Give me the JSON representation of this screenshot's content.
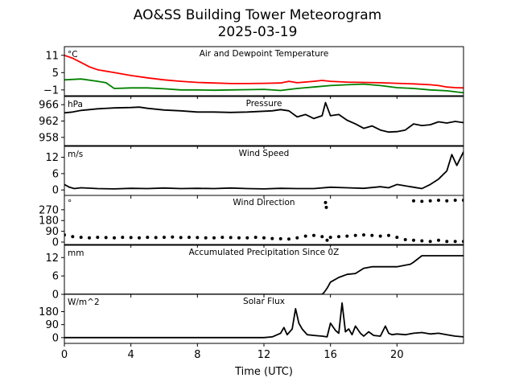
{
  "chart_data": {
    "type": "line",
    "title": "AO&SS Building Tower Meteorogram",
    "subtitle": "2025-03-19",
    "xlabel": "Time (UTC)",
    "xlim": [
      0,
      24
    ],
    "xticks": [
      0,
      4,
      8,
      12,
      16,
      20
    ],
    "xtick_labels": [
      "0",
      "4",
      "8",
      "12",
      "16",
      "20"
    ],
    "panels": [
      {
        "title": "Air and Dewpoint Temperature",
        "unit": "°C",
        "ylim": [
          -3,
          14
        ],
        "yticks": [
          -1,
          5,
          11
        ],
        "ytick_labels": [
          "−1",
          "5",
          "11"
        ],
        "series": [
          {
            "type": "line",
            "color": "#ff0000",
            "x": [
              0,
              0.5,
              1,
              1.5,
              2,
              3,
              4,
              5,
              6,
              7,
              8,
              9,
              10,
              11,
              12,
              13,
              13.5,
              14,
              15,
              15.5,
              16,
              17,
              18,
              19,
              20,
              21,
              22,
              22.5,
              23,
              23.5,
              24
            ],
            "values": [
              11,
              10,
              8.5,
              7,
              6,
              5,
              4,
              3.2,
              2.5,
              2,
              1.6,
              1.4,
              1.2,
              1.2,
              1.3,
              1.4,
              2,
              1.5,
              2,
              2.3,
              2,
              1.7,
              1.6,
              1.5,
              1.3,
              1.1,
              0.8,
              0.5,
              0,
              -0.2,
              -0.3
            ]
          },
          {
            "type": "line",
            "color": "#008000",
            "x": [
              0,
              1,
              2,
              2.5,
              3,
              4,
              5,
              6,
              7,
              8,
              9,
              10,
              11,
              12,
              13,
              14,
              15,
              16,
              17,
              18,
              19,
              20,
              21,
              22,
              23,
              24
            ],
            "values": [
              2.5,
              2.8,
              2,
              1.5,
              -0.5,
              -0.3,
              -0.3,
              -0.6,
              -1,
              -1,
              -1.1,
              -1,
              -0.9,
              -0.8,
              -1.2,
              -0.5,
              0,
              0.5,
              0.8,
              1,
              0.5,
              -0.2,
              -0.5,
              -1,
              -1.3,
              -2
            ]
          }
        ]
      },
      {
        "title": "Pressure",
        "unit": "hPa",
        "ylim": [
          956,
          968
        ],
        "yticks": [
          958,
          962,
          966
        ],
        "ytick_labels": [
          "958",
          "962",
          "966"
        ],
        "series": [
          {
            "type": "line",
            "color": "#000000",
            "x": [
              0,
              0.5,
              1,
              2,
              3,
              4,
              4.5,
              5,
              6,
              7,
              8,
              9,
              10,
              11,
              12,
              12.5,
              13,
              13.5,
              14,
              14.5,
              15,
              15.5,
              15.7,
              16,
              16.5,
              17,
              17.5,
              18,
              18.5,
              19,
              19.5,
              20,
              20.5,
              21,
              21.5,
              22,
              22.5,
              23,
              23.5,
              24
            ],
            "values": [
              964,
              964.2,
              964.6,
              965,
              965.2,
              965.3,
              965.4,
              965.1,
              964.7,
              964.5,
              964.2,
              964.2,
              964.1,
              964.2,
              964.4,
              964.5,
              964.8,
              964.5,
              963,
              963.6,
              962.6,
              963.3,
              966.5,
              963.3,
              963.6,
              962.2,
              961.3,
              960.2,
              960.8,
              959.8,
              959.3,
              959.4,
              959.8,
              961.3,
              960.9,
              961.1,
              961.8,
              961.5,
              961.9,
              961.6
            ]
          }
        ]
      },
      {
        "title": "Wind Speed",
        "unit": "m/s",
        "ylim": [
          -2,
          16
        ],
        "yticks": [
          0,
          6,
          12
        ],
        "ytick_labels": [
          "0",
          "6",
          "12"
        ],
        "series": [
          {
            "type": "line",
            "color": "#000000",
            "x": [
              0,
              0.3,
              0.6,
              1,
              2,
              3,
              4,
              5,
              6,
              7,
              8,
              9,
              10,
              11,
              12,
              13,
              14,
              15,
              16,
              17,
              18,
              19,
              19.5,
              20,
              21,
              21.5,
              22,
              22.5,
              23,
              23.3,
              23.6,
              24
            ],
            "values": [
              2,
              1,
              0.5,
              0.8,
              0.5,
              0.4,
              0.6,
              0.5,
              0.7,
              0.5,
              0.6,
              0.5,
              0.7,
              0.5,
              0.4,
              0.6,
              0.5,
              0.5,
              1,
              0.8,
              0.6,
              1.2,
              0.8,
              2,
              1,
              0.5,
              2,
              4,
              7,
              13,
              9,
              14
            ]
          }
        ]
      },
      {
        "title": "Wind Direction",
        "unit": "°",
        "ylim": [
          -20,
          390
        ],
        "yticks": [
          0,
          90,
          180,
          270
        ],
        "ytick_labels": [
          "0",
          "90",
          "180",
          "270"
        ],
        "series": [
          {
            "type": "scatter",
            "color": "#000000",
            "x": [
              0,
              0.5,
              1,
              1.5,
              2,
              2.5,
              3,
              3.5,
              4,
              4.5,
              5,
              5.5,
              6,
              6.5,
              7,
              7.5,
              8,
              8.5,
              9,
              9.5,
              10,
              10.5,
              11,
              11.5,
              12,
              12.5,
              13,
              13.5,
              14,
              14.5,
              15,
              15.5,
              15.7,
              15.75,
              15.8,
              16,
              16.5,
              17,
              17.5,
              18,
              18.5,
              19,
              19.5,
              20,
              20.5,
              21,
              21.5,
              22,
              22.5,
              23,
              23.5,
              24,
              21,
              21.5,
              22,
              22.5,
              23,
              23.5,
              24
            ],
            "values": [
              60,
              45,
              40,
              35,
              40,
              38,
              35,
              40,
              38,
              36,
              40,
              38,
              40,
              42,
              38,
              40,
              38,
              36,
              35,
              40,
              38,
              35,
              36,
              40,
              35,
              30,
              28,
              25,
              35,
              50,
              55,
              45,
              330,
              290,
              15,
              40,
              45,
              50,
              55,
              60,
              55,
              50,
              55,
              40,
              20,
              15,
              10,
              5,
              15,
              5,
              5,
              5,
              345,
              340,
              345,
              350,
              345,
              350,
              350
            ]
          }
        ]
      },
      {
        "title": "Accumulated Precipitation Since 0Z",
        "unit": "mm",
        "ylim": [
          0,
          16
        ],
        "yticks": [
          0,
          6,
          12
        ],
        "ytick_labels": [
          "0",
          "6",
          "12"
        ],
        "series": [
          {
            "type": "line",
            "color": "#000000",
            "x": [
              0,
              13.5,
              15.5,
              15.6,
              15.8,
              16,
              16.5,
              17,
              17.5,
              18,
              18.5,
              20,
              20.8,
              21,
              21.5,
              24
            ],
            "values": [
              0,
              0,
              0,
              0.5,
              2,
              4,
              5.5,
              6.5,
              6.8,
              8.5,
              9,
              9,
              9.8,
              10.5,
              12.6,
              12.6
            ]
          }
        ]
      },
      {
        "title": "Solar Flux",
        "unit": "W/m^2",
        "ylim": [
          -40,
          300
        ],
        "yticks": [
          0,
          90,
          180
        ],
        "ytick_labels": [
          "0",
          "90",
          "180"
        ],
        "series": [
          {
            "type": "line",
            "color": "#000000",
            "x": [
              0,
              12,
              12.5,
              13,
              13.2,
              13.4,
              13.7,
              13.9,
              14.1,
              14.3,
              14.6,
              15,
              15.5,
              15.8,
              16,
              16.3,
              16.5,
              16.7,
              16.9,
              17.1,
              17.3,
              17.5,
              17.8,
              18,
              18.3,
              18.6,
              19,
              19.3,
              19.5,
              19.7,
              20,
              20.5,
              21,
              21.5,
              22,
              22.5,
              23,
              23.5,
              24
            ],
            "values": [
              0,
              0,
              5,
              30,
              70,
              20,
              60,
              200,
              100,
              60,
              20,
              15,
              10,
              5,
              100,
              50,
              30,
              240,
              40,
              60,
              20,
              80,
              30,
              10,
              40,
              15,
              10,
              80,
              30,
              20,
              25,
              20,
              30,
              35,
              25,
              30,
              20,
              10,
              5
            ]
          }
        ]
      }
    ]
  }
}
